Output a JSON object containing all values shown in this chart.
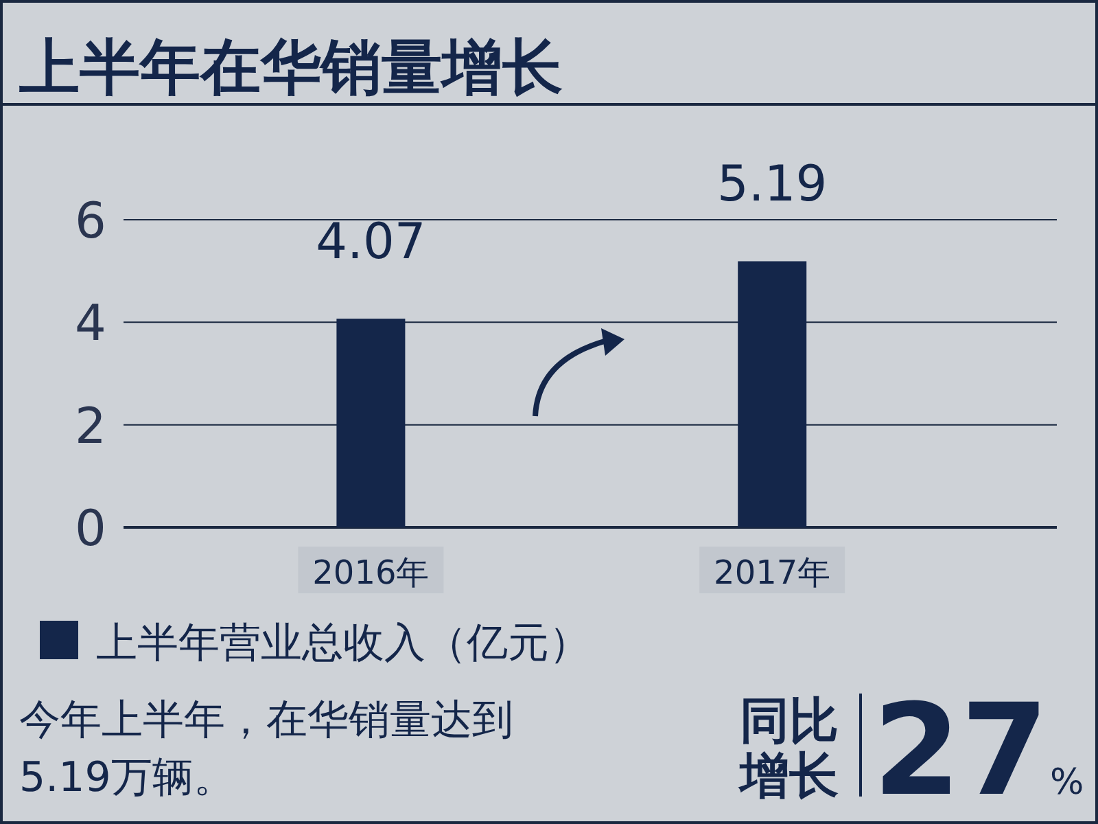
{
  "chart_data": {
    "type": "bar",
    "title": "上半年在华销量增长",
    "categories": [
      "2016年",
      "2017年"
    ],
    "series": [
      {
        "name": "上半年营业总收入（亿元）",
        "color": "#14264a",
        "values": [
          4.07,
          5.19
        ]
      }
    ],
    "ylim": [
      0,
      6
    ],
    "yticks": [
      0,
      2,
      4,
      6
    ],
    "grid": "y",
    "legend": "bottom left",
    "data_labels": true,
    "annotations": [
      "今年上半年，在华销量达到5.19万辆。",
      "同比增长27%"
    ]
  }
}
